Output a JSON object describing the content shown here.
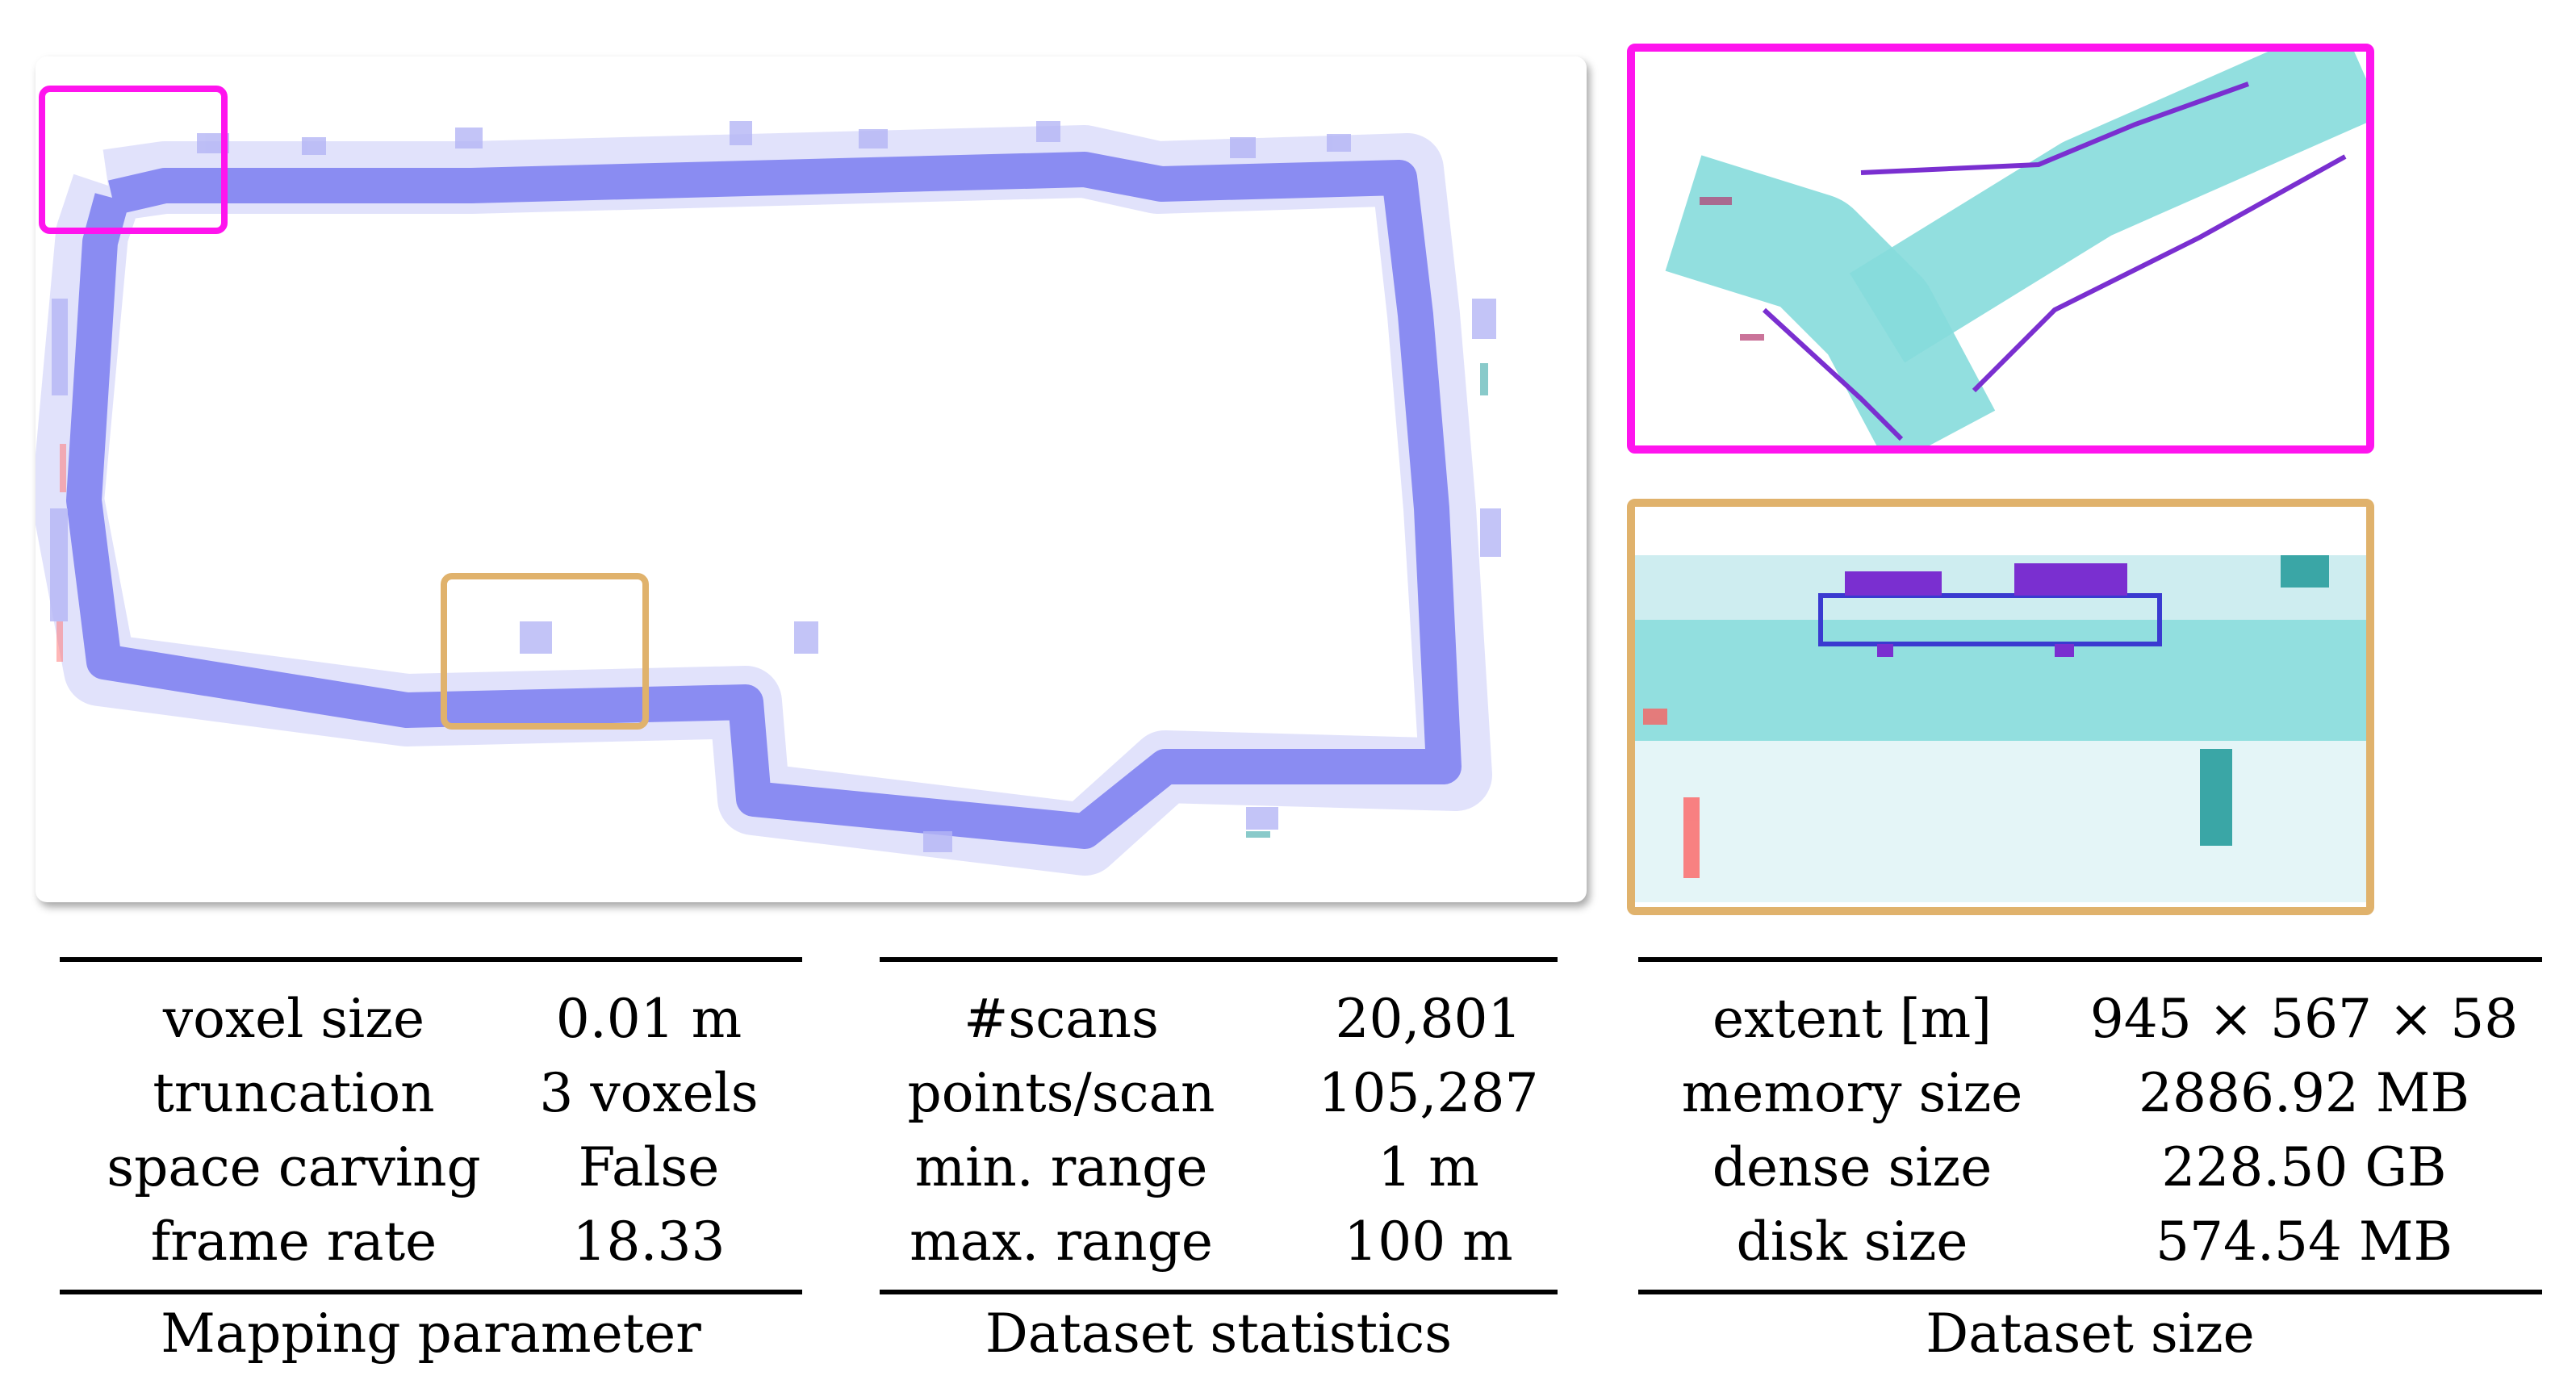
{
  "tables": [
    {
      "caption": "Mapping parameter",
      "rows": [
        {
          "label": "voxel size",
          "value": "0.01 m"
        },
        {
          "label": "truncation",
          "value": "3 voxels"
        },
        {
          "label": "space carving",
          "value": "False"
        },
        {
          "label": "frame rate",
          "value": "18.33"
        }
      ]
    },
    {
      "caption": "Dataset statistics",
      "rows": [
        {
          "label": "#scans",
          "value": "20,801"
        },
        {
          "label": "points/scan",
          "value": "105,287"
        },
        {
          "label": "min. range",
          "value": "1 m"
        },
        {
          "label": "max. range",
          "value": "100 m"
        }
      ]
    },
    {
      "caption": "Dataset size",
      "rows": [
        {
          "label": "extent [m]",
          "value": "945 × 567 × 58"
        },
        {
          "label": "memory size",
          "value": "2886.92 MB"
        },
        {
          "label": "dense size",
          "value": "228.50 GB"
        },
        {
          "label": "disk size",
          "value": "574.54 MB"
        }
      ]
    }
  ],
  "colors": {
    "map_path": "#8a8cf2",
    "highlight_magenta": "#ff14ee",
    "highlight_orange": "#e0b26c",
    "inset_road": "#86dcdc",
    "building_edges": "#7a2fd0"
  }
}
